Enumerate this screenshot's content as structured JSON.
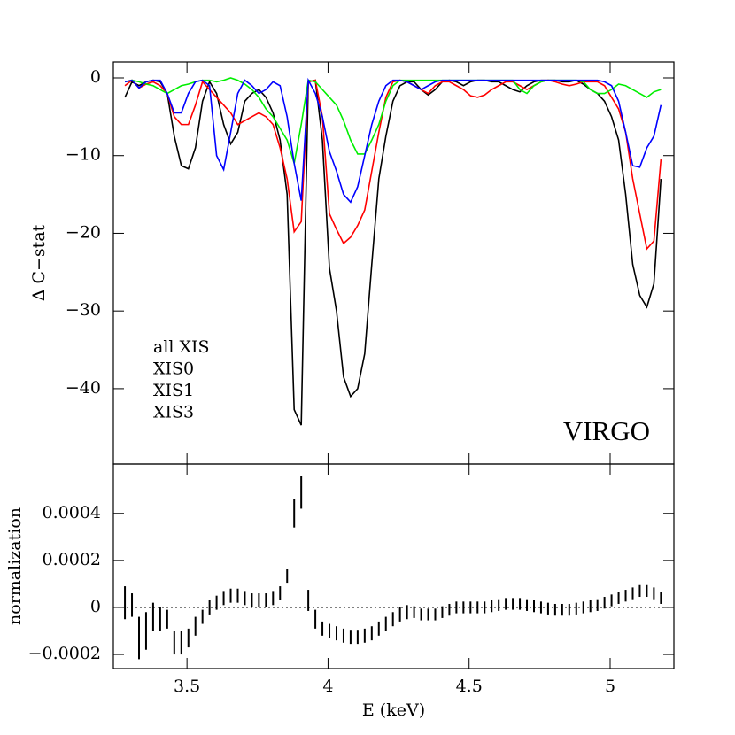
{
  "chart_data": [
    {
      "type": "line",
      "ylabel": "Δ C−stat",
      "annotation": "VIRGO",
      "xlim": [
        3.239,
        5.226
      ],
      "xticks": [
        3.5,
        4,
        4.5,
        5
      ],
      "ylim": [
        -49.7,
        2.05
      ],
      "yticks": [
        0,
        {
          "value": -10,
          "label": "−10"
        },
        {
          "value": -20,
          "label": "−20"
        },
        {
          "value": -30,
          "label": "−30"
        },
        {
          "value": -40,
          "label": "−40"
        }
      ],
      "x": [
        3.28,
        3.305,
        3.33,
        3.355,
        3.38,
        3.405,
        3.43,
        3.455,
        3.48,
        3.505,
        3.53,
        3.555,
        3.58,
        3.605,
        3.63,
        3.655,
        3.68,
        3.705,
        3.73,
        3.755,
        3.78,
        3.805,
        3.83,
        3.855,
        3.88,
        3.905,
        3.93,
        3.955,
        3.98,
        4.005,
        4.03,
        4.055,
        4.08,
        4.105,
        4.13,
        4.155,
        4.18,
        4.205,
        4.23,
        4.255,
        4.28,
        4.305,
        4.33,
        4.355,
        4.38,
        4.405,
        4.43,
        4.455,
        4.48,
        4.505,
        4.53,
        4.555,
        4.58,
        4.605,
        4.63,
        4.655,
        4.68,
        4.705,
        4.73,
        4.755,
        4.78,
        4.805,
        4.83,
        4.855,
        4.88,
        4.905,
        4.93,
        4.955,
        4.98,
        5.005,
        5.03,
        5.055,
        5.08,
        5.105,
        5.13,
        5.155,
        5.18
      ],
      "series": [
        {
          "name": "all XIS",
          "color": "#000000",
          "values": [
            -2.5,
            -0.5,
            -1,
            -0.5,
            -0.3,
            -0.5,
            -2,
            -7.5,
            -11.3,
            -11.7,
            -9,
            -3,
            -0.5,
            -2,
            -6,
            -8.5,
            -7,
            -3,
            -2,
            -1.5,
            -2.5,
            -4.5,
            -8,
            -15,
            -42.7,
            -44.7,
            -0.5,
            -0.3,
            -8,
            -24.5,
            -30,
            -38.5,
            -41,
            -40,
            -35.5,
            -24,
            -13,
            -7.5,
            -3,
            -1,
            -0.5,
            -0.5,
            -1.5,
            -2.2,
            -1.5,
            -0.5,
            -0.3,
            -0.5,
            -1,
            -0.5,
            -0.3,
            -0.3,
            -0.5,
            -0.5,
            -1,
            -1.5,
            -1.8,
            -1,
            -0.5,
            -0.3,
            -0.3,
            -0.3,
            -0.5,
            -0.5,
            -0.3,
            -0.8,
            -1.5,
            -2,
            -3,
            -5,
            -8,
            -15,
            -24,
            -28,
            -29.5,
            -26.5,
            -13
          ]
        },
        {
          "name": "XIS0",
          "color": "#ff0000",
          "values": [
            -1,
            -0.3,
            -1.3,
            -0.8,
            -0.5,
            -1,
            -2,
            -5,
            -6,
            -6,
            -3.5,
            -0.5,
            -1.5,
            -2.5,
            -3.5,
            -4.5,
            -6,
            -5.5,
            -5,
            -4.5,
            -5,
            -6,
            -9,
            -13,
            -19.8,
            -18.5,
            -0.5,
            -0.3,
            -5,
            -17.5,
            -19.5,
            -21.3,
            -20.5,
            -19,
            -17,
            -12,
            -7,
            -2.5,
            -0.5,
            -0.3,
            -0.5,
            -1,
            -1.5,
            -2,
            -1,
            -0.5,
            -0.5,
            -1,
            -1.5,
            -2.3,
            -2.5,
            -2.2,
            -1.5,
            -1,
            -0.5,
            -0.5,
            -1,
            -1.5,
            -1,
            -0.5,
            -0.3,
            -0.5,
            -0.8,
            -1,
            -0.8,
            -0.5,
            -0.5,
            -0.5,
            -1,
            -2.5,
            -4,
            -7,
            -13,
            -17.5,
            -22,
            -21,
            -10.5
          ]
        },
        {
          "name": "XIS1",
          "color": "#00ee00",
          "values": [
            -0.5,
            -0.3,
            -0.5,
            -0.8,
            -1,
            -1.5,
            -2,
            -1.5,
            -1,
            -0.8,
            -0.5,
            -0.3,
            -0.3,
            -0.5,
            -0.3,
            0,
            -0.3,
            -0.8,
            -1.5,
            -2.5,
            -4,
            -5,
            -6.5,
            -8,
            -11,
            -6,
            -0.3,
            -0.5,
            -1.5,
            -2.5,
            -3.5,
            -5.5,
            -8,
            -9.8,
            -9.8,
            -8,
            -6,
            -3,
            -1,
            -0.3,
            -0.3,
            -0.3,
            -0.3,
            -0.3,
            -0.3,
            -0.3,
            -0.3,
            -0.3,
            -0.3,
            -0.3,
            -0.3,
            -0.3,
            -0.3,
            -0.3,
            -0.3,
            -0.3,
            -1.5,
            -2,
            -1,
            -0.5,
            -0.3,
            -0.3,
            -0.3,
            -0.3,
            -0.3,
            -0.5,
            -1.5,
            -2,
            -2,
            -1.5,
            -0.8,
            -1,
            -1.5,
            -2,
            -2.5,
            -1.8,
            -1.5
          ]
        },
        {
          "name": "XIS3",
          "color": "#0000ff",
          "values": [
            -0.5,
            -0.3,
            -1.3,
            -0.5,
            -0.3,
            -0.3,
            -2,
            -4.5,
            -4.5,
            -2,
            -0.5,
            -0.3,
            -1,
            -10,
            -11.8,
            -7,
            -2,
            -0.3,
            -1,
            -2,
            -1.5,
            -0.5,
            -1,
            -5,
            -11,
            -15.8,
            -0.3,
            -2,
            -5,
            -9.5,
            -12,
            -15,
            -16,
            -14,
            -10,
            -6,
            -3,
            -1,
            -0.3,
            -0.3,
            -0.5,
            -1,
            -1.5,
            -1,
            -0.5,
            -0.3,
            -0.3,
            -0.3,
            -0.3,
            -0.3,
            -0.3,
            -0.3,
            -0.3,
            -0.3,
            -0.3,
            -0.3,
            -0.3,
            -0.3,
            -0.3,
            -0.3,
            -0.3,
            -0.3,
            -0.3,
            -0.3,
            -0.3,
            -0.3,
            -0.3,
            -0.3,
            -0.5,
            -1,
            -3,
            -7,
            -11.3,
            -11.5,
            -9,
            -7.5,
            -3.5
          ]
        }
      ]
    },
    {
      "type": "errorbar",
      "xlabel": "E (keV)",
      "ylabel": "normalization",
      "xlim": [
        3.239,
        5.226
      ],
      "xticks": [
        3.5,
        4,
        4.5,
        5
      ],
      "ylim": [
        -0.00026,
        0.00061
      ],
      "yticks": [
        0.0004,
        0.0002,
        0,
        {
          "value": -0.0002,
          "label": "−0.0002"
        }
      ],
      "x": [
        3.28,
        3.305,
        3.33,
        3.355,
        3.38,
        3.405,
        3.43,
        3.455,
        3.48,
        3.505,
        3.53,
        3.555,
        3.58,
        3.605,
        3.63,
        3.655,
        3.68,
        3.705,
        3.73,
        3.755,
        3.78,
        3.805,
        3.83,
        3.855,
        3.88,
        3.905,
        3.93,
        3.955,
        3.98,
        4.005,
        4.03,
        4.055,
        4.08,
        4.105,
        4.13,
        4.155,
        4.18,
        4.205,
        4.23,
        4.255,
        4.28,
        4.305,
        4.33,
        4.355,
        4.38,
        4.405,
        4.43,
        4.455,
        4.48,
        4.505,
        4.53,
        4.555,
        4.58,
        4.605,
        4.63,
        4.655,
        4.68,
        4.705,
        4.73,
        4.755,
        4.78,
        4.805,
        4.83,
        4.855,
        4.88,
        4.905,
        4.93,
        4.955,
        4.98,
        5.005,
        5.03,
        5.055,
        5.08,
        5.105,
        5.13,
        5.155,
        5.18
      ],
      "color": "#000000",
      "values": [
        2e-05,
        1e-05,
        -0.00013,
        -0.0001,
        -4e-05,
        -5e-05,
        -5e-05,
        -0.00015,
        -0.00015,
        -0.00013,
        -8e-05,
        -4e-05,
        0,
        2e-05,
        4e-05,
        5e-05,
        5e-05,
        4e-05,
        3e-05,
        3e-05,
        3e-05,
        4e-05,
        6e-05,
        0.000135,
        0.0004,
        0.00049,
        3e-05,
        -5e-05,
        -9e-05,
        -0.0001,
        -0.00011,
        -0.00012,
        -0.000125,
        -0.000125,
        -0.00012,
        -0.00011,
        -9e-05,
        -7e-05,
        -5e-05,
        -3e-05,
        -2e-05,
        -2e-05,
        -3e-05,
        -3e-05,
        -3e-05,
        -2e-05,
        -1e-05,
        0,
        0,
        0,
        0,
        0,
        5e-06,
        1e-05,
        1.5e-05,
        1.5e-05,
        1.5e-05,
        1e-05,
        5e-06,
        0,
        -5e-06,
        -1e-05,
        -1e-05,
        -1e-05,
        -5e-06,
        0,
        5e-06,
        1e-05,
        2e-05,
        3e-05,
        4e-05,
        5e-05,
        6e-05,
        7e-05,
        7e-05,
        6e-05,
        4e-05
      ],
      "errors": [
        7e-05,
        5e-05,
        9e-05,
        8e-05,
        6e-05,
        5e-05,
        4e-05,
        5e-05,
        5e-05,
        4e-05,
        4e-05,
        3e-05,
        3e-05,
        3e-05,
        3e-05,
        3e-05,
        3e-05,
        3e-05,
        3e-05,
        3e-05,
        3e-05,
        3e-05,
        3e-05,
        3e-05,
        6e-05,
        7e-05,
        4.5e-05,
        4e-05,
        3e-05,
        3e-05,
        3e-05,
        3e-05,
        3e-05,
        3e-05,
        3e-05,
        3e-05,
        3e-05,
        3e-05,
        3e-05,
        3e-05,
        3e-05,
        2.5e-05,
        2.5e-05,
        2.5e-05,
        2.5e-05,
        2.5e-05,
        2.5e-05,
        2.5e-05,
        2.5e-05,
        2.5e-05,
        2.5e-05,
        2.5e-05,
        2.5e-05,
        2.5e-05,
        2.5e-05,
        2.5e-05,
        2.5e-05,
        2.5e-05,
        2.5e-05,
        2.5e-05,
        2.5e-05,
        2.5e-05,
        2.5e-05,
        2.5e-05,
        2.5e-05,
        2.5e-05,
        2.5e-05,
        2.5e-05,
        2.5e-05,
        2.5e-05,
        2.5e-05,
        2.5e-05,
        2.5e-05,
        2.5e-05,
        2.5e-05,
        2.5e-05,
        2.5e-05
      ]
    }
  ]
}
